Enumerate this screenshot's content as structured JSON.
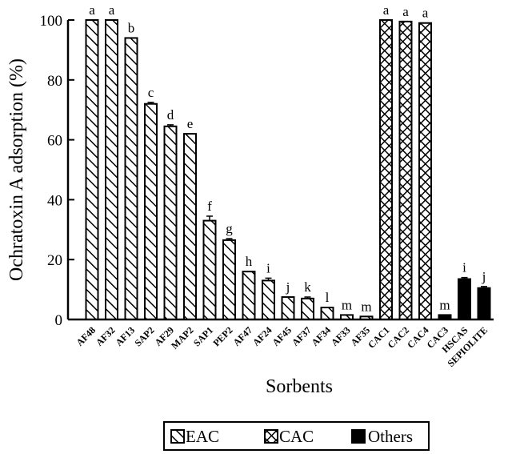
{
  "chart_data": {
    "type": "bar",
    "title": "",
    "xlabel": "Sorbents",
    "ylabel": "Ochratoxin A adsorption (%)",
    "ylim": [
      0,
      100
    ],
    "yticks": [
      0,
      20,
      40,
      60,
      80,
      100
    ],
    "grid": false,
    "legend_position": "bottom",
    "legend": [
      {
        "name": "EAC",
        "pattern": "diagonal-hatch"
      },
      {
        "name": "CAC",
        "pattern": "cross-hatch"
      },
      {
        "name": "Others",
        "pattern": "solid"
      }
    ],
    "categories": [
      "AF48",
      "AF32",
      "AF13",
      "SAP2",
      "AF29",
      "MAP2",
      "SAP1",
      "PEP2",
      "AF47",
      "AF24",
      "AF45",
      "AF37",
      "AF34",
      "AF33",
      "AF35",
      "CAC1",
      "CAC2",
      "CAC4",
      "CAC3",
      "HSCAS",
      "SEPIOLITE"
    ],
    "groups": [
      "EAC",
      "EAC",
      "EAC",
      "EAC",
      "EAC",
      "EAC",
      "EAC",
      "EAC",
      "EAC",
      "EAC",
      "EAC",
      "EAC",
      "EAC",
      "EAC",
      "EAC",
      "CAC",
      "CAC",
      "CAC",
      "Others",
      "Others",
      "Others"
    ],
    "values": [
      100,
      100,
      94,
      72,
      64.5,
      62,
      33,
      26.5,
      16,
      13,
      7.5,
      7,
      4,
      1.5,
      1,
      100,
      99.5,
      99,
      1.5,
      13.5,
      10.5
    ],
    "errors": [
      0,
      0,
      0,
      0.5,
      0.5,
      0,
      1.5,
      0.5,
      0,
      0.8,
      0,
      0.5,
      0,
      0,
      0,
      0,
      0,
      0,
      0,
      0.5,
      0.5
    ],
    "significance": [
      "a",
      "a",
      "b",
      "c",
      "d",
      "e",
      "f",
      "g",
      "h",
      "i",
      "j",
      "k",
      "l",
      "m",
      "m",
      "a",
      "a",
      "a",
      "m",
      "i",
      "j"
    ]
  }
}
